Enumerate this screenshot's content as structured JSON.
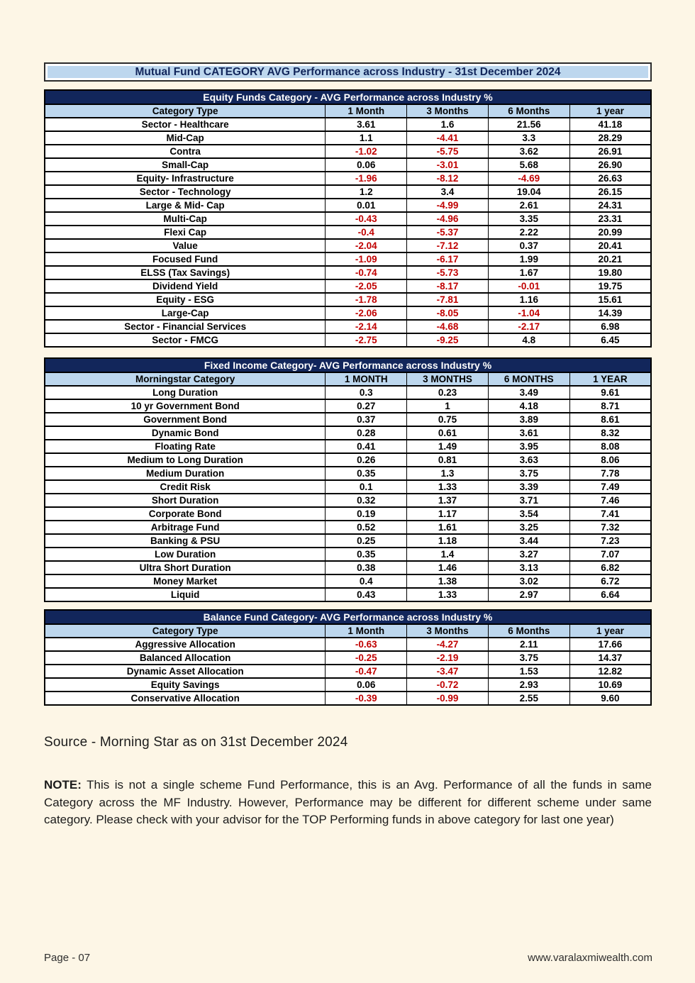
{
  "page_title": "Mutual Fund CATEGORY AVG Performance across Industry - 31st December 2024",
  "tables": [
    {
      "section_title": "Equity Funds Category - AVG Performance across Industry %",
      "columns": [
        "Category Type",
        "1 Month",
        "3 Months",
        "6 Months",
        "1 year"
      ],
      "rows": [
        [
          "Sector - Healthcare",
          "3.61",
          "1.6",
          "21.56",
          "41.18"
        ],
        [
          "Mid-Cap",
          "1.1",
          "-4.41",
          "3.3",
          "28.29"
        ],
        [
          "Contra",
          "-1.02",
          "-5.75",
          "3.62",
          "26.91"
        ],
        [
          "Small-Cap",
          "0.06",
          "-3.01",
          "5.68",
          "26.90"
        ],
        [
          "Equity- Infrastructure",
          "-1.96",
          "-8.12",
          "-4.69",
          "26.63"
        ],
        [
          "Sector - Technology",
          "1.2",
          "3.4",
          "19.04",
          "26.15"
        ],
        [
          "Large & Mid- Cap",
          "0.01",
          "-4.99",
          "2.61",
          "24.31"
        ],
        [
          "Multi-Cap",
          "-0.43",
          "-4.96",
          "3.35",
          "23.31"
        ],
        [
          "Flexi Cap",
          "-0.4",
          "-5.37",
          "2.22",
          "20.99"
        ],
        [
          "Value",
          "-2.04",
          "-7.12",
          "0.37",
          "20.41"
        ],
        [
          "Focused Fund",
          "-1.09",
          "-6.17",
          "1.99",
          "20.21"
        ],
        [
          "ELSS (Tax Savings)",
          "-0.74",
          "-5.73",
          "1.67",
          "19.80"
        ],
        [
          "Dividend Yield",
          "-2.05",
          "-8.17",
          "-0.01",
          "19.75"
        ],
        [
          "Equity - ESG",
          "-1.78",
          "-7.81",
          "1.16",
          "15.61"
        ],
        [
          "Large-Cap",
          "-2.06",
          "-8.05",
          "-1.04",
          "14.39"
        ],
        [
          "Sector - Financial Services",
          "-2.14",
          "-4.68",
          "-2.17",
          "6.98"
        ],
        [
          "Sector - FMCG",
          "-2.75",
          "-9.25",
          "4.8",
          "6.45"
        ]
      ]
    },
    {
      "section_title": "Fixed Income Category- AVG Performance across Industry %",
      "columns": [
        "Morningstar Category",
        "1 MONTH",
        "3 MONTHS",
        "6 MONTHS",
        "1 YEAR"
      ],
      "rows": [
        [
          "Long Duration",
          "0.3",
          "0.23",
          "3.49",
          "9.61"
        ],
        [
          "10 yr Government Bond",
          "0.27",
          "1",
          "4.18",
          "8.71"
        ],
        [
          "Government Bond",
          "0.37",
          "0.75",
          "3.89",
          "8.61"
        ],
        [
          "Dynamic Bond",
          "0.28",
          "0.61",
          "3.61",
          "8.32"
        ],
        [
          "Floating Rate",
          "0.41",
          "1.49",
          "3.95",
          "8.08"
        ],
        [
          "Medium to Long Duration",
          "0.26",
          "0.81",
          "3.63",
          "8.06"
        ],
        [
          "Medium Duration",
          "0.35",
          "1.3",
          "3.75",
          "7.78"
        ],
        [
          "Credit Risk",
          "0.1",
          "1.33",
          "3.39",
          "7.49"
        ],
        [
          "Short Duration",
          "0.32",
          "1.37",
          "3.71",
          "7.46"
        ],
        [
          "Corporate Bond",
          "0.19",
          "1.17",
          "3.54",
          "7.41"
        ],
        [
          "Arbitrage Fund",
          "0.52",
          "1.61",
          "3.25",
          "7.32"
        ],
        [
          "Banking & PSU",
          "0.25",
          "1.18",
          "3.44",
          "7.23"
        ],
        [
          "Low Duration",
          "0.35",
          "1.4",
          "3.27",
          "7.07"
        ],
        [
          "Ultra Short Duration",
          "0.38",
          "1.46",
          "3.13",
          "6.82"
        ],
        [
          "Money Market",
          "0.4",
          "1.38",
          "3.02",
          "6.72"
        ],
        [
          "Liquid",
          "0.43",
          "1.33",
          "2.97",
          "6.64"
        ]
      ]
    },
    {
      "section_title": "Balance Fund Category- AVG Performance across Industry %",
      "columns": [
        "Category Type",
        "1 Month",
        "3 Months",
        "6 Months",
        "1 year"
      ],
      "rows": [
        [
          "Aggressive Allocation",
          "-0.63",
          "-4.27",
          "2.11",
          "17.66"
        ],
        [
          "Balanced Allocation",
          "-0.25",
          "-2.19",
          "3.75",
          "14.37"
        ],
        [
          "Dynamic Asset Allocation",
          "-0.47",
          "-3.47",
          "1.53",
          "12.82"
        ],
        [
          "Equity Savings",
          "0.06",
          "-0.72",
          "2.93",
          "10.69"
        ],
        [
          "Conservative Allocation",
          "-0.39",
          "-0.99",
          "2.55",
          "9.60"
        ]
      ]
    }
  ],
  "source_line": "Source - Morning Star as on 31st December 2024",
  "note": {
    "label": "NOTE:",
    "text": " This is not a single scheme Fund Performance, this is an Avg. Performance of all the funds in same Category across the MF Industry. However, Performance may be different for different scheme under same category. Please check with your advisor for the TOP Performing funds in above category for last one year)"
  },
  "footer": {
    "page_number": "Page - 07",
    "website": "www.varalaxmiwealth.com"
  },
  "colors": {
    "navy_header": "#12265B",
    "light_blue_header": "#BDD7EE",
    "negative_red": "#C00000",
    "page_cream": "#FDF6E6"
  }
}
